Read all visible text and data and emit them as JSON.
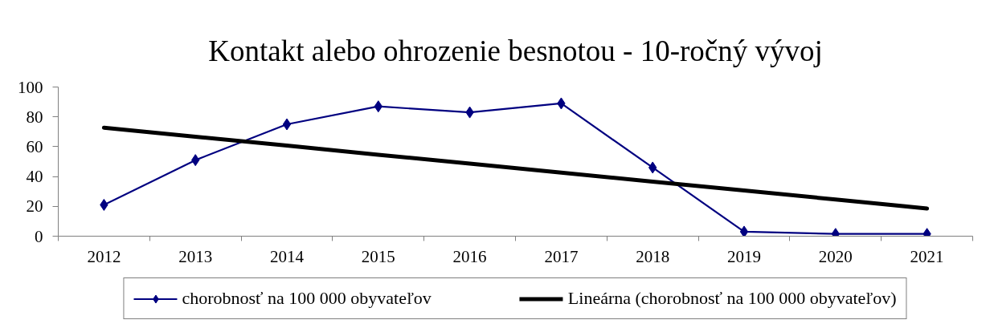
{
  "chart_data": {
    "type": "line",
    "title": "Kontakt alebo ohrozenie besnotou - 10-ročný vývoj",
    "categories": [
      "2012",
      "2013",
      "2014",
      "2015",
      "2016",
      "2017",
      "2018",
      "2019",
      "2020",
      "2021"
    ],
    "series": [
      {
        "name": "chorobnosť na 100 000 obyvateľov",
        "color": "#000080",
        "values": [
          21,
          51,
          75,
          87,
          83,
          89,
          46,
          3,
          1.5,
          1.5
        ]
      },
      {
        "name": "Lineárna (chorobnosť na 100 000 obyvateľov)",
        "color": "#000000",
        "type": "line",
        "marker": "none",
        "values": [
          72.7,
          66.7,
          60.7,
          54.6,
          48.6,
          42.6,
          36.6,
          30.6,
          24.6,
          18.6
        ]
      }
    ],
    "ylim": [
      0,
      100
    ],
    "yticks": [
      0,
      20,
      40,
      60,
      80,
      100
    ],
    "grid": false,
    "legend": "bottom",
    "marker": "diamond",
    "line_style": "solid"
  }
}
